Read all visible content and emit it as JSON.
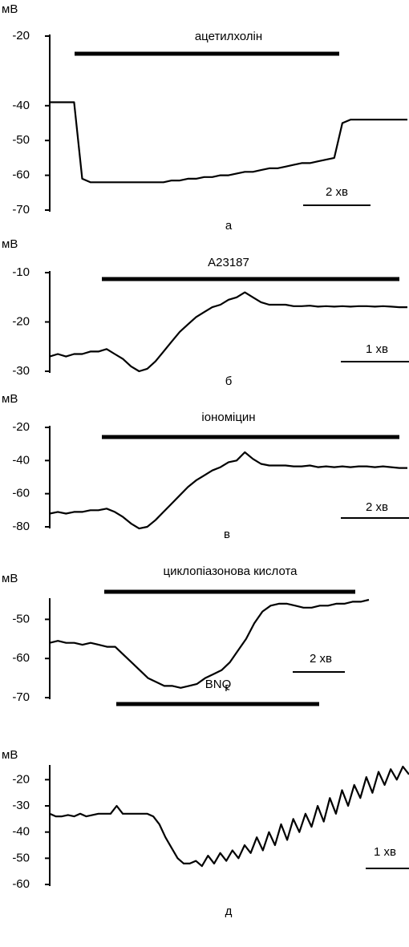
{
  "chart_data": [
    {
      "type": "line",
      "panel": "а",
      "y_label": "мВ",
      "treatment": "ацетилхолін",
      "scale_label": "2 хв",
      "color": "#000000",
      "ylim": [
        -70,
        -20
      ],
      "yticks": [
        -20,
        -40,
        -50,
        -60,
        -70
      ],
      "values": [
        -39,
        -39,
        -39,
        -39,
        -61,
        -62,
        -62,
        -62,
        -62,
        -62,
        -62,
        -62,
        -62,
        -62,
        -62,
        -61.5,
        -61.5,
        -61,
        -61,
        -60.5,
        -60.5,
        -60,
        -60,
        -59.5,
        -59,
        -59,
        -58.5,
        -58,
        -58,
        -57.5,
        -57,
        -56.5,
        -56.5,
        -56,
        -55.5,
        -55,
        -45,
        -44,
        -44,
        -44,
        -44,
        -44,
        -44,
        -44,
        -44
      ]
    },
    {
      "type": "line",
      "panel": "б",
      "y_label": "мВ",
      "treatment": "A23187",
      "scale_label": "1 хв",
      "color": "#000000",
      "ylim": [
        -30,
        -10
      ],
      "yticks": [
        -10,
        -20,
        -30
      ],
      "values": [
        -27,
        -26.5,
        -27,
        -26.5,
        -26.5,
        -26,
        -26,
        -25.5,
        -26.5,
        -27.5,
        -29,
        -30,
        -29.5,
        -28,
        -26,
        -24,
        -22,
        -20.5,
        -19,
        -18,
        -17,
        -16.5,
        -15.5,
        -15,
        -14,
        -15,
        -16,
        -16.5,
        -16.5,
        -16.5,
        -16.8,
        -16.8,
        -16.7,
        -16.9,
        -16.8,
        -16.9,
        -16.8,
        -16.9,
        -16.8,
        -16.8,
        -16.9,
        -16.8,
        -16.9,
        -17,
        -17
      ]
    },
    {
      "type": "line",
      "panel": "в",
      "y_label": "мВ",
      "treatment": "іономіцин",
      "scale_label": "2 хв",
      "color": "#000000",
      "ylim": [
        -80,
        -20
      ],
      "yticks": [
        -20,
        -40,
        -60,
        -80
      ],
      "values": [
        -72,
        -71,
        -72,
        -71,
        -71,
        -70,
        -70,
        -69,
        -71,
        -74,
        -78,
        -81,
        -80,
        -76,
        -71,
        -66,
        -61,
        -56,
        -52,
        -49,
        -46,
        -44,
        -41,
        -40,
        -35,
        -39,
        -42,
        -43,
        -43,
        -43,
        -43.5,
        -43.5,
        -43,
        -44,
        -43.5,
        -44,
        -43.5,
        -44,
        -43.5,
        -43.5,
        -44,
        -43.5,
        -44,
        -44.5,
        -44.5
      ]
    },
    {
      "type": "line",
      "panel": "г",
      "y_label": "мВ",
      "treatment": "циклопіазонова кислота",
      "scale_label": "2 хв",
      "color": "#000000",
      "ylim": [
        -70,
        -45
      ],
      "yticks": [
        -50,
        -60,
        -70
      ],
      "values": [
        -56,
        -55.5,
        -56,
        -56,
        -56.5,
        -56,
        -56.5,
        -57,
        -57,
        -59,
        -61,
        -63,
        -65,
        -66,
        -67,
        -67,
        -67.5,
        -67,
        -66.5,
        -65,
        -64,
        -63,
        -61,
        -58,
        -55,
        -51,
        -48,
        -46.5,
        -46,
        -46,
        -46.5,
        -47,
        -47,
        -46.5,
        -46.5,
        -46,
        -46,
        -45.5,
        -45.5,
        -45
      ]
    },
    {
      "type": "line",
      "panel": "д",
      "y_label": "мВ",
      "treatment": "BNQ",
      "scale_label": "1 хв",
      "color": "#000000",
      "ylim": [
        -60,
        -15
      ],
      "yticks": [
        -20,
        -30,
        -40,
        -50,
        -60
      ],
      "values": [
        -33,
        -34,
        -34,
        -33.5,
        -34,
        -33,
        -34,
        -33.5,
        -33,
        -33,
        -33,
        -30,
        -33,
        -33,
        -33,
        -33,
        -33,
        -34,
        -37,
        -42,
        -46,
        -50,
        -52,
        -52,
        -51,
        -53,
        -49,
        -52,
        -48,
        -51,
        -47,
        -50,
        -45,
        -48,
        -42,
        -47,
        -40,
        -45,
        -37,
        -43,
        -35,
        -40,
        -33,
        -38,
        -30,
        -36,
        -27,
        -33,
        -24,
        -30,
        -22,
        -27,
        -19,
        -25,
        -17,
        -22,
        -16,
        -20,
        -15,
        -18
      ]
    }
  ]
}
